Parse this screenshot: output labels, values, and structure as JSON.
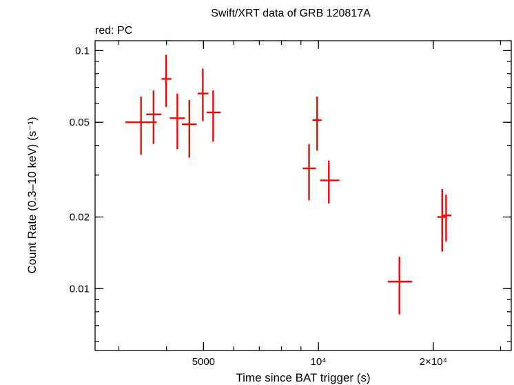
{
  "chart_data": {
    "type": "scatter",
    "title": "Swift/XRT data of GRB 120817A",
    "subtitle": "red: PC",
    "xlabel": "Time since BAT trigger (s)",
    "ylabel": "Count Rate (0.3–10 keV) (s⁻¹)",
    "x_scale": "log",
    "y_scale": "log",
    "xlim": [
      2600,
      32000
    ],
    "ylim": [
      0.0055,
      0.11
    ],
    "grid": false,
    "x_ticks": [
      {
        "value": 5000,
        "label": "5000"
      },
      {
        "value": 10000,
        "label": "10⁴"
      },
      {
        "value": 20000,
        "label": "2×10⁴"
      }
    ],
    "y_ticks": [
      {
        "value": 0.01,
        "label": "0.01"
      },
      {
        "value": 0.02,
        "label": "0.02"
      },
      {
        "value": 0.05,
        "label": "0.05"
      },
      {
        "value": 0.1,
        "label": "0.1"
      }
    ],
    "series": [
      {
        "color": "#ff0000",
        "points": [
          {
            "x": 3430,
            "xlo": 3120,
            "xhi": 3770,
            "y": 0.05,
            "ylo": 0.0365,
            "yhi": 0.064
          },
          {
            "x": 3700,
            "xlo": 3540,
            "xhi": 3880,
            "y": 0.054,
            "ylo": 0.0405,
            "yhi": 0.068
          },
          {
            "x": 3990,
            "xlo": 3880,
            "xhi": 4120,
            "y": 0.076,
            "ylo": 0.058,
            "yhi": 0.096
          },
          {
            "x": 4270,
            "xlo": 4080,
            "xhi": 4470,
            "y": 0.052,
            "ylo": 0.0385,
            "yhi": 0.066
          },
          {
            "x": 4590,
            "xlo": 4390,
            "xhi": 4800,
            "y": 0.049,
            "ylo": 0.0355,
            "yhi": 0.062
          },
          {
            "x": 4980,
            "xlo": 4830,
            "xhi": 5150,
            "y": 0.066,
            "ylo": 0.0505,
            "yhi": 0.084
          },
          {
            "x": 5300,
            "xlo": 5100,
            "xhi": 5550,
            "y": 0.055,
            "ylo": 0.0415,
            "yhi": 0.068
          },
          {
            "x": 9450,
            "xlo": 9100,
            "xhi": 9850,
            "y": 0.032,
            "ylo": 0.0235,
            "yhi": 0.0405
          },
          {
            "x": 9920,
            "xlo": 9650,
            "xhi": 10200,
            "y": 0.051,
            "ylo": 0.038,
            "yhi": 0.064
          },
          {
            "x": 10650,
            "xlo": 10100,
            "xhi": 11350,
            "y": 0.0285,
            "ylo": 0.0228,
            "yhi": 0.0345
          },
          {
            "x": 16300,
            "xlo": 15200,
            "xhi": 17600,
            "y": 0.0107,
            "ylo": 0.0078,
            "yhi": 0.0136
          },
          {
            "x": 21100,
            "xlo": 20500,
            "xhi": 21600,
            "y": 0.02,
            "ylo": 0.0143,
            "yhi": 0.0262
          },
          {
            "x": 21600,
            "xlo": 21100,
            "xhi": 22300,
            "y": 0.0203,
            "ylo": 0.0158,
            "yhi": 0.0248
          }
        ]
      }
    ]
  }
}
